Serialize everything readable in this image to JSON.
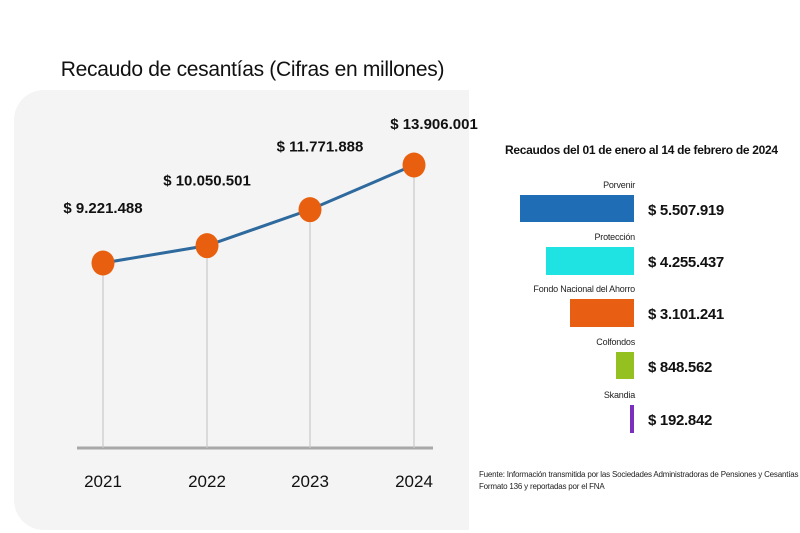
{
  "chart_data": [
    {
      "type": "line",
      "title": "Recaudo de cesantías (Cifras en millones)",
      "xlabel": "",
      "ylabel": "",
      "categories": [
        "2021",
        "2022",
        "2023",
        "2024"
      ],
      "values": [
        9221488,
        10050501,
        11771888,
        13906001
      ],
      "data_labels": [
        "$ 9.221.488",
        "$ 10.050.501",
        "$ 11.771.888",
        "$ 13.906.001"
      ],
      "grid": false,
      "colors": {
        "line": "#2e6a9e",
        "marker": "#e8600f",
        "stem": "#c8c8c8",
        "axis": "#a8a8a8"
      }
    },
    {
      "type": "bar",
      "orientation": "horizontal",
      "title": "Recaudos del 01 de enero al 14 de febrero de 2024",
      "categories": [
        "Porvenir",
        "Protección",
        "Fondo Nacional del Ahorro",
        "Colfondos",
        "Skandia"
      ],
      "values": [
        5507919,
        4255437,
        3101241,
        848562,
        192842
      ],
      "data_labels": [
        "$ 5.507.919",
        "$ 4.255.437",
        "$ 3.101.241",
        "$ 848.562",
        "$ 192.842"
      ],
      "colors": [
        "#1f6db5",
        "#1fe3e3",
        "#e85e12",
        "#94c11f",
        "#7b2fbf"
      ],
      "source": "Fuente: Información transmitida por las Sociedades Administradoras de Pensiones y Cesantías Formato 136 y reportadas por el FNA"
    }
  ],
  "source_lines": [
    "Fuente: Información transmitida por las Sociedades Administradoras de Pensiones y Cesantías",
    "Formato 136 y reportadas por el FNA"
  ]
}
